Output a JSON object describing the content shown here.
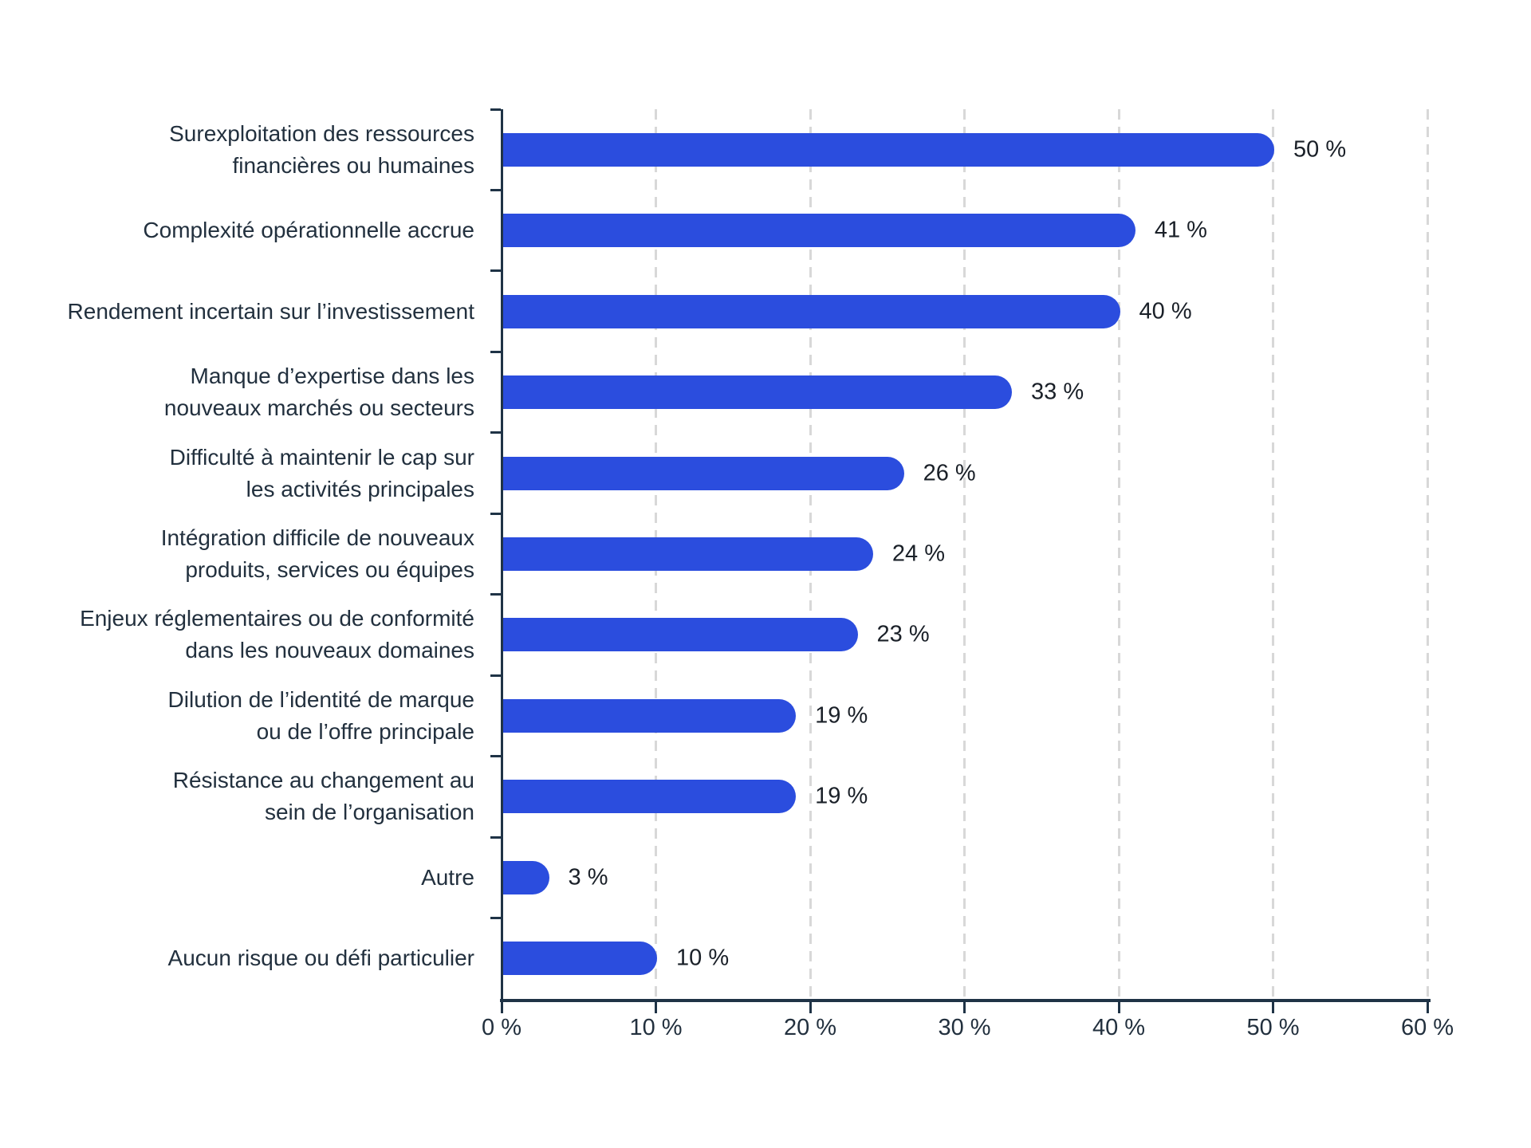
{
  "colors": {
    "bar": "#2B4DDE",
    "axis": "#1F3346",
    "grid": "#D8D8D8",
    "category_text": "#22303E",
    "value_text": "#1A2028",
    "tick_text": "#22303E",
    "background": "#FFFFFF"
  },
  "chart_data": {
    "type": "bar",
    "orientation": "horizontal",
    "title": "",
    "xlabel": "",
    "ylabel": "",
    "xlim": [
      0,
      60
    ],
    "grid": "vertical-dashed",
    "legend": "none",
    "x_tick_values": [
      0,
      10,
      20,
      30,
      40,
      50,
      60
    ],
    "x_tick_labels": [
      "0 %",
      "10 %",
      "20 %",
      "30 %",
      "40 %",
      "50 %",
      "60 %"
    ],
    "categories": [
      "Surexploitation des ressources financières ou humaines",
      "Complexité opérationnelle accrue",
      "Rendement incertain sur l’investissement",
      "Manque d’expertise dans les nouveaux marchés ou secteurs",
      "Difficulté à maintenir le cap sur les activités principales",
      "Intégration difficile de nouveaux produits, services ou équipes",
      "Enjeux réglementaires ou de conformité dans les nouveaux domaines",
      "Dilution de l’identité de marque ou de l’offre principale",
      "Résistance au changement au sein de l’organisation",
      "Autre",
      "Aucun risque ou défi particulier"
    ],
    "values": [
      50,
      41,
      40,
      33,
      26,
      24,
      23,
      19,
      19,
      3,
      10
    ],
    "bars": [
      {
        "label_lines": [
          "Surexploitation des ressources",
          "financières ou humaines"
        ],
        "value": 50,
        "value_label": "50 %"
      },
      {
        "label_lines": [
          "Complexité opérationnelle accrue"
        ],
        "value": 41,
        "value_label": "41 %"
      },
      {
        "label_lines": [
          "Rendement incertain sur l’investissement"
        ],
        "value": 40,
        "value_label": "40 %"
      },
      {
        "label_lines": [
          "Manque d’expertise dans les",
          "nouveaux marchés ou secteurs"
        ],
        "value": 33,
        "value_label": "33 %"
      },
      {
        "label_lines": [
          "Difficulté à maintenir le cap sur",
          "les activités principales"
        ],
        "value": 26,
        "value_label": "26 %"
      },
      {
        "label_lines": [
          "Intégration difficile de nouveaux",
          "produits, services ou équipes"
        ],
        "value": 24,
        "value_label": "24 %"
      },
      {
        "label_lines": [
          "Enjeux réglementaires ou de conformité",
          "dans les nouveaux domaines"
        ],
        "value": 23,
        "value_label": "23 %"
      },
      {
        "label_lines": [
          "Dilution de l’identité de marque",
          "ou de l’offre principale"
        ],
        "value": 19,
        "value_label": "19 %"
      },
      {
        "label_lines": [
          "Résistance au changement au",
          "sein de l’organisation"
        ],
        "value": 19,
        "value_label": "19 %"
      },
      {
        "label_lines": [
          "Autre"
        ],
        "value": 3,
        "value_label": "3 %"
      },
      {
        "label_lines": [
          "Aucun risque ou défi particulier"
        ],
        "value": 10,
        "value_label": "10 %"
      }
    ]
  }
}
